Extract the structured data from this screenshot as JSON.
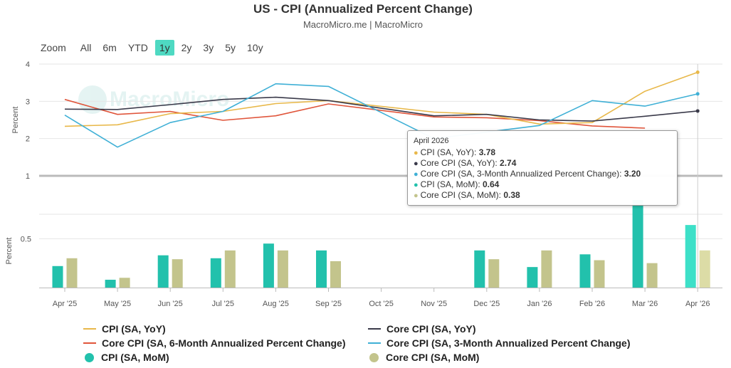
{
  "header": {
    "title": "US - CPI (Annualized Percent Change)",
    "subtitle": "MacroMicro.me | MacroMicro"
  },
  "zoom": {
    "label": "Zoom",
    "buttons": [
      "All",
      "6m",
      "YTD",
      "1y",
      "2y",
      "3y",
      "5y",
      "10y"
    ],
    "active": "1y"
  },
  "watermark": {
    "text": "MacroMicro"
  },
  "tooltip": {
    "title": "April 2026",
    "rows": [
      {
        "label": "CPI (SA, YoY): ",
        "value": "3.78",
        "color": "#e8b84a"
      },
      {
        "label": "Core CPI (SA, YoY): ",
        "value": "2.74",
        "color": "#3a3a4a"
      },
      {
        "label": "Core CPI (SA, 3-Month Annualized Percent Change): ",
        "value": "3.20",
        "color": "#3fb0d6"
      },
      {
        "label": "CPI (SA, MoM): ",
        "value": "0.64",
        "color": "#22c1ac"
      },
      {
        "label": "Core CPI (SA, MoM): ",
        "value": "0.38",
        "color": "#c3c48c"
      }
    ]
  },
  "chart_data": {
    "type": "line+bar",
    "categories": [
      "Apr '25",
      "May '25",
      "Jun '25",
      "Jul '25",
      "Aug '25",
      "Sep '25",
      "Oct '25",
      "Nov '25",
      "Dec '25",
      "Jan '26",
      "Feb '26",
      "Mar '26",
      "Apr '26"
    ],
    "upper_panel": {
      "ylabel": "Percent",
      "yticks": [
        1,
        2,
        3,
        4
      ],
      "ylim": [
        1,
        4
      ],
      "series": [
        {
          "name": "CPI (SA, YoY)",
          "color": "#e8b84a",
          "values": [
            2.33,
            2.37,
            2.67,
            2.73,
            2.94,
            3.02,
            null,
            2.71,
            2.65,
            2.39,
            2.43,
            3.27,
            3.78
          ]
        },
        {
          "name": "Core CPI (SA, YoY)",
          "color": "#3a3a4a",
          "values": [
            2.79,
            2.78,
            2.91,
            3.05,
            3.11,
            3.02,
            null,
            2.61,
            2.65,
            2.5,
            2.47,
            2.6,
            2.74
          ]
        },
        {
          "name": "Core CPI (SA, 6-Month Annualized Percent Change)",
          "color": "#e0553b",
          "values": [
            3.05,
            2.65,
            2.73,
            2.49,
            2.61,
            2.93,
            null,
            2.58,
            2.56,
            2.48,
            2.34,
            2.28,
            null
          ]
        },
        {
          "name": "Core CPI (SA, 3-Month Annualized Percent Change)",
          "color": "#3fb0d6",
          "values": [
            2.63,
            1.77,
            2.43,
            2.73,
            3.47,
            3.4,
            null,
            2.0,
            null,
            2.35,
            3.02,
            2.87,
            3.2
          ]
        }
      ]
    },
    "lower_panel": {
      "ylabel": "Percent",
      "yticks": [
        0.5
      ],
      "ylim": [
        0,
        0.75
      ],
      "series": [
        {
          "name": "CPI (SA, MoM)",
          "color": "#22c1ac",
          "values": [
            0.22,
            0.08,
            0.33,
            0.3,
            0.45,
            0.38,
            null,
            null,
            0.38,
            0.21,
            0.34,
            0.95,
            0.64
          ]
        },
        {
          "name": "Core CPI (SA, MoM)",
          "color": "#c3c48c",
          "values": [
            0.3,
            0.1,
            0.29,
            0.38,
            0.38,
            0.27,
            null,
            null,
            0.29,
            0.38,
            0.28,
            0.25,
            0.38
          ]
        }
      ]
    },
    "legend_position": "bottom"
  },
  "legend": [
    {
      "label": "CPI (SA, YoY)",
      "color": "#e8b84a",
      "kind": "line"
    },
    {
      "label": "Core CPI (SA, YoY)",
      "color": "#3a3a4a",
      "kind": "line"
    },
    {
      "label": "Core CPI (SA, 6-Month Annualized Percent Change)",
      "color": "#e0553b",
      "kind": "line"
    },
    {
      "label": "Core CPI (SA, 3-Month Annualized Percent Change)",
      "color": "#3fb0d6",
      "kind": "line"
    },
    {
      "label": "CPI (SA, MoM)",
      "color": "#22c1ac",
      "kind": "dot"
    },
    {
      "label": "Core CPI (SA, MoM)",
      "color": "#c3c48c",
      "kind": "dot"
    }
  ]
}
